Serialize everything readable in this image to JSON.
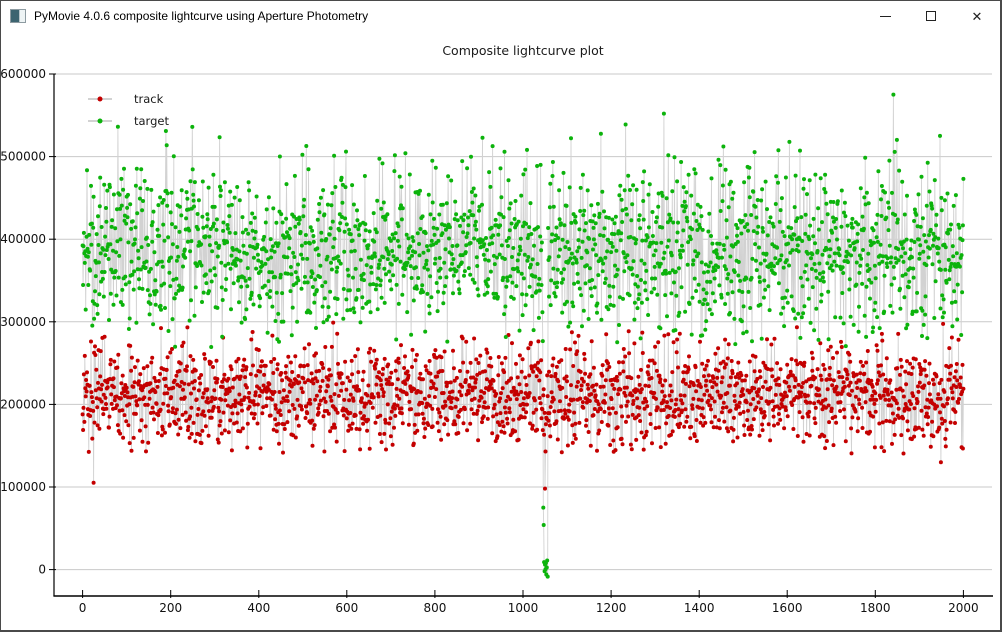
{
  "window": {
    "title": "PyMovie 4.0.6 composite lightcurve using Aperture Photometry",
    "controls": [
      {
        "name": "minimize",
        "icon": "minimize-icon"
      },
      {
        "name": "maximize",
        "icon": "maximize-icon"
      },
      {
        "name": "close",
        "icon": "close-icon"
      }
    ]
  },
  "chart_data": {
    "type": "line+scatter",
    "title": "Composite lightcurve plot",
    "xlabel": "",
    "ylabel": "",
    "xlim": [
      -65,
      2065
    ],
    "ylim": [
      -32000,
      600000
    ],
    "grid": "horizontal",
    "grid_color": "#c9c9c9",
    "line_color": "#d2d2d2",
    "background": "#ffffff",
    "axis_color": "#000000",
    "legend": {
      "position": "upper-left",
      "entries": [
        {
          "label": "track",
          "color": "#c40000"
        },
        {
          "label": "target",
          "color": "#0cb30c"
        }
      ]
    },
    "x_ticks": [
      {
        "value": 0,
        "label": "0"
      },
      {
        "value": 200,
        "label": "200"
      },
      {
        "value": 400,
        "label": "400"
      },
      {
        "value": 600,
        "label": "600"
      },
      {
        "value": 800,
        "label": "800"
      },
      {
        "value": 1000,
        "label": "1000"
      },
      {
        "value": 1200,
        "label": "1200"
      },
      {
        "value": 1400,
        "label": "1400"
      },
      {
        "value": 1600,
        "label": "1600"
      },
      {
        "value": 1800,
        "label": "1800"
      },
      {
        "value": 2000,
        "label": "2000"
      }
    ],
    "y_ticks": [
      {
        "value": 0,
        "label": "0"
      },
      {
        "value": 100000,
        "label": "100000"
      },
      {
        "value": 200000,
        "label": "200000"
      },
      {
        "value": 300000,
        "label": "300000"
      },
      {
        "value": 400000,
        "label": "400000"
      },
      {
        "value": 500000,
        "label": "500000"
      },
      {
        "value": 600000,
        "label": "600000"
      }
    ],
    "n_points": 2001,
    "x_step": 1,
    "x_range": [
      0,
      2000
    ],
    "series": [
      {
        "name": "track",
        "color": "#c40000",
        "marker": "dot",
        "mean": 211000,
        "std": 31000,
        "min": 140000,
        "max": 307000,
        "seed": 1337,
        "anomalies": [
          {
            "x": 25,
            "y": 105000
          },
          {
            "x": 1050,
            "y": 98000
          },
          {
            "x": 1051,
            "y": 143000
          },
          {
            "x": 1949,
            "y": 130000
          }
        ]
      },
      {
        "name": "target",
        "color": "#0cb30c",
        "marker": "dot",
        "mean": 383000,
        "std": 50000,
        "min": 268000,
        "max": 542000,
        "seed": 2024,
        "anomalies": [
          {
            "x": 1320,
            "y": 552000
          },
          {
            "x": 1841,
            "y": 575000
          },
          {
            "x": 1046,
            "y": 75000
          },
          {
            "x": 1047,
            "y": 54000
          },
          {
            "x": 1048,
            "y": 9000
          },
          {
            "x": 1049,
            "y": -2000
          },
          {
            "x": 1050,
            "y": 6000
          },
          {
            "x": 1051,
            "y": 500
          },
          {
            "x": 1052,
            "y": 8000
          },
          {
            "x": 1053,
            "y": -6000
          },
          {
            "x": 1054,
            "y": 2500
          },
          {
            "x": 1055,
            "y": 11000
          },
          {
            "x": 1056,
            "y": -8500
          }
        ]
      }
    ]
  }
}
